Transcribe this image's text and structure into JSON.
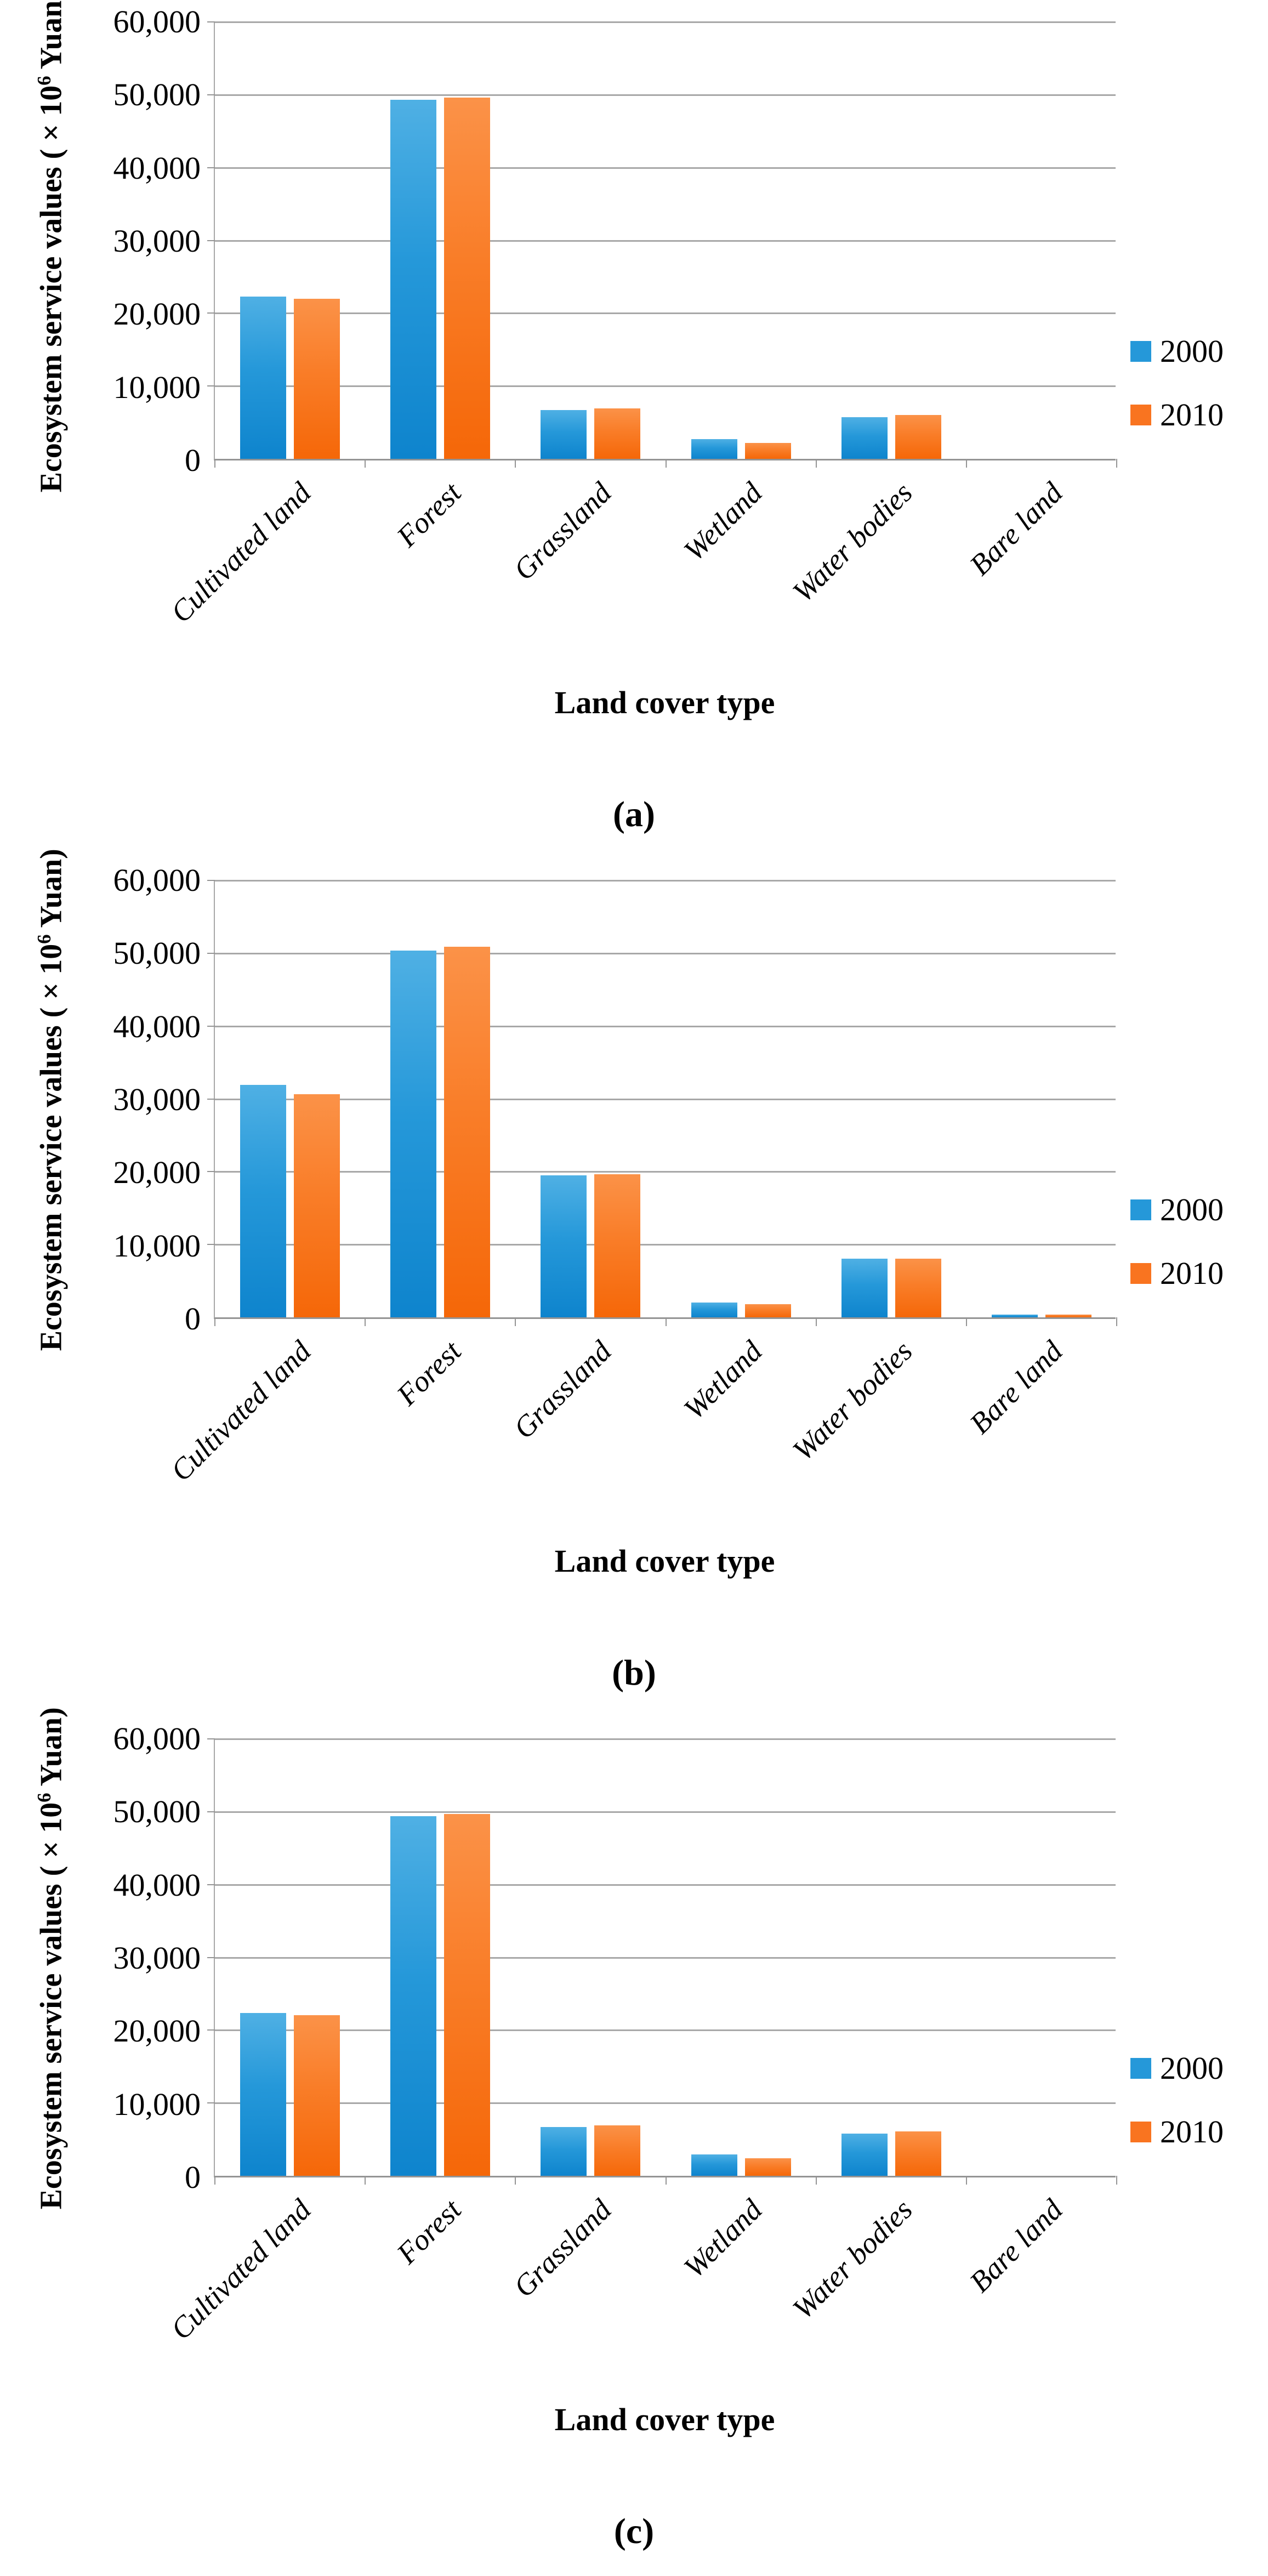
{
  "figure": {
    "y_axis_title": {
      "pre": "Ecosystem service values ( × 10",
      "sup": "6",
      "post": " Yuan)"
    },
    "x_axis_title": "Land cover type",
    "y_ticks": [
      "60,000",
      "50,000",
      "40,000",
      "30,000",
      "20,000",
      "10,000",
      "0"
    ],
    "categories": [
      "Cultivated land",
      "Forest",
      "Grassland",
      "Wetland",
      "Water bodies",
      "Bare land"
    ],
    "legend": [
      {
        "label": "2000",
        "color_hex": "#2598D9"
      },
      {
        "label": "2010",
        "color_hex": "#F97420"
      }
    ],
    "captions": [
      "(a)",
      "(b)",
      "(c)"
    ]
  },
  "colors": {
    "bar_blue_top": "#4FB0E4",
    "bar_blue_mid": "#2598D9",
    "bar_blue_bottom": "#0E84CD",
    "bar_orange_top": "#FB9248",
    "bar_orange_mid": "#F97D28",
    "bar_orange_bottom": "#F56708",
    "gridline": "#A8A8A8",
    "axis": "#949494",
    "text": "#000000"
  },
  "chart_data": [
    {
      "type": "bar",
      "panel": "(a)",
      "title": "",
      "xlabel": "Land cover type",
      "ylabel": "Ecosystem service values (×10^6 Yuan)",
      "ylim": [
        0,
        60000
      ],
      "gridline_step": 10000,
      "grid": true,
      "legend_position": "right",
      "categories": [
        "Cultivated land",
        "Forest",
        "Grassland",
        "Wetland",
        "Water bodies",
        "Bare land"
      ],
      "series": [
        {
          "name": "2000",
          "values": [
            22200,
            49100,
            6700,
            2700,
            5700,
            0
          ]
        },
        {
          "name": "2010",
          "values": [
            21900,
            49400,
            6900,
            2200,
            6000,
            0
          ]
        }
      ]
    },
    {
      "type": "bar",
      "panel": "(b)",
      "title": "",
      "xlabel": "Land cover type",
      "ylabel": "Ecosystem service values (×10^6 Yuan)",
      "ylim": [
        0,
        60000
      ],
      "gridline_step": 10000,
      "grid": true,
      "legend_position": "right",
      "categories": [
        "Cultivated land",
        "Forest",
        "Grassland",
        "Wetland",
        "Water bodies",
        "Bare land"
      ],
      "series": [
        {
          "name": "2000",
          "values": [
            31800,
            50200,
            19400,
            2000,
            8000,
            400
          ]
        },
        {
          "name": "2010",
          "values": [
            30500,
            50700,
            19600,
            1800,
            8000,
            350
          ]
        }
      ]
    },
    {
      "type": "bar",
      "panel": "(c)",
      "title": "",
      "xlabel": "Land cover type",
      "ylabel": "Ecosystem service values (×10^6 Yuan)",
      "ylim": [
        0,
        60000
      ],
      "gridline_step": 10000,
      "grid": true,
      "legend_position": "right",
      "categories": [
        "Cultivated land",
        "Forest",
        "Grassland",
        "Wetland",
        "Water bodies",
        "Bare land"
      ],
      "series": [
        {
          "name": "2000",
          "values": [
            22300,
            49200,
            6700,
            2900,
            5800,
            0
          ]
        },
        {
          "name": "2010",
          "values": [
            22000,
            49500,
            6900,
            2400,
            6100,
            0
          ]
        }
      ]
    }
  ]
}
